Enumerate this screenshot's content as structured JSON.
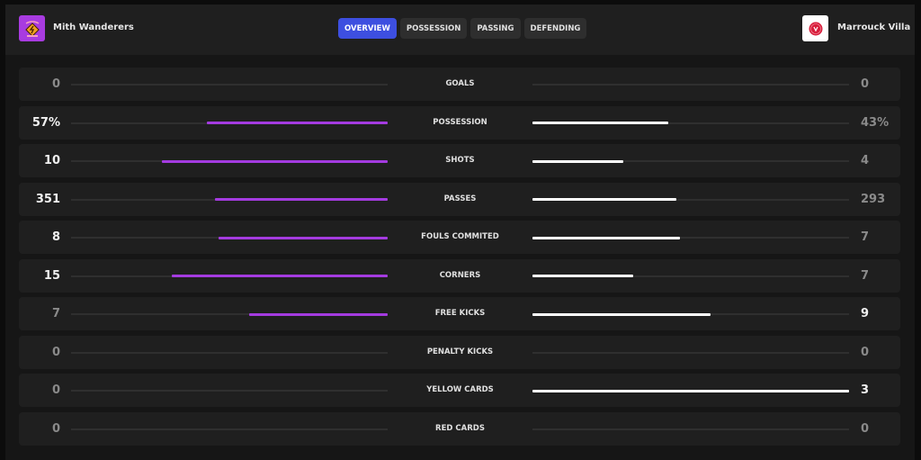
{
  "header": {
    "home_team": "Mith Wanderers",
    "away_team": "Marrouck Villa",
    "tabs": [
      {
        "label": "OVERVIEW",
        "active": true
      },
      {
        "label": "POSSESSION",
        "active": false
      },
      {
        "label": "PASSING",
        "active": false
      },
      {
        "label": "DEFENDING",
        "active": false
      }
    ]
  },
  "colors": {
    "home": "#a43be0",
    "away": "#ffffff",
    "active_tab": "#3d4fe0"
  },
  "stats": [
    {
      "label": "GOALS",
      "home": "0",
      "away": "0",
      "home_n": 0,
      "away_n": 0
    },
    {
      "label": "POSSESSION",
      "home": "57%",
      "away": "43%",
      "home_n": 57,
      "away_n": 43
    },
    {
      "label": "SHOTS",
      "home": "10",
      "away": "4",
      "home_n": 10,
      "away_n": 4
    },
    {
      "label": "PASSES",
      "home": "351",
      "away": "293",
      "home_n": 351,
      "away_n": 293
    },
    {
      "label": "FOULS COMMITED",
      "home": "8",
      "away": "7",
      "home_n": 8,
      "away_n": 7
    },
    {
      "label": "CORNERS",
      "home": "15",
      "away": "7",
      "home_n": 15,
      "away_n": 7
    },
    {
      "label": "FREE KICKS",
      "home": "7",
      "away": "9",
      "home_n": 7,
      "away_n": 9
    },
    {
      "label": "PENALTY KICKS",
      "home": "0",
      "away": "0",
      "home_n": 0,
      "away_n": 0
    },
    {
      "label": "YELLOW CARDS",
      "home": "0",
      "away": "3",
      "home_n": 0,
      "away_n": 3
    },
    {
      "label": "RED CARDS",
      "home": "0",
      "away": "0",
      "home_n": 0,
      "away_n": 0
    }
  ]
}
